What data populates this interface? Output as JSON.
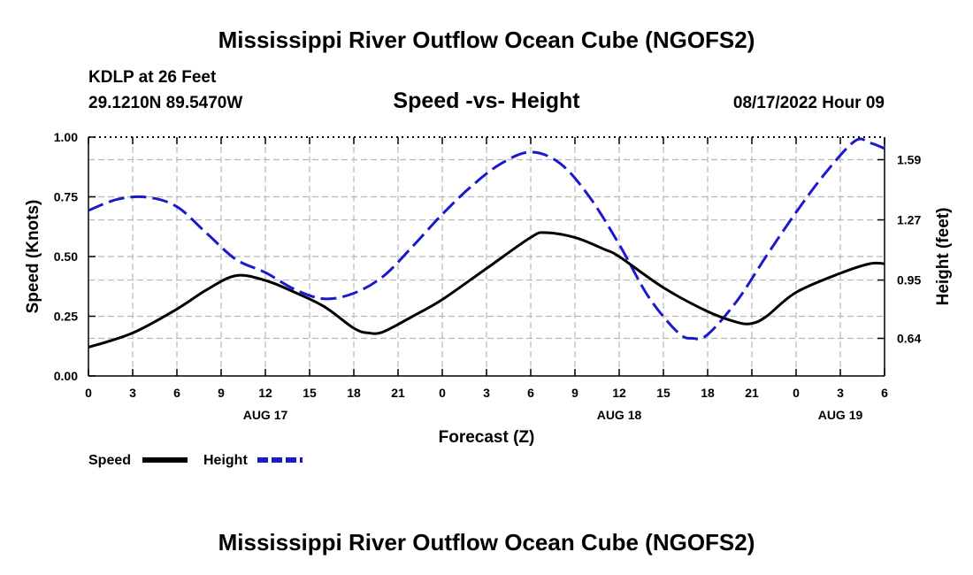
{
  "header": {
    "main_title": "Mississippi River Outflow Ocean Cube (NGOFS2)",
    "station": "KDLP at 26 Feet",
    "coordinates": "29.1210N  89.5470W",
    "subtitle": "Speed -vs- Height",
    "datetime": "08/17/2022 Hour 09",
    "bottom_title": "Mississippi River Outflow Ocean Cube (NGOFS2)"
  },
  "chart_data": {
    "type": "line",
    "title": "Speed -vs- Height",
    "xlabel": "Forecast (Z)",
    "ylabel": "Speed (Knots)",
    "y2label": "Height (feet)",
    "x_hours_range": [
      0,
      54
    ],
    "x_ticks": [
      0,
      3,
      6,
      9,
      12,
      15,
      18,
      21,
      24,
      27,
      30,
      33,
      36,
      39,
      42,
      45,
      48,
      51,
      54
    ],
    "x_tick_labels": [
      "0",
      "3",
      "6",
      "9",
      "12",
      "15",
      "18",
      "21",
      "0",
      "3",
      "6",
      "9",
      "12",
      "15",
      "18",
      "21",
      "0",
      "3",
      "6"
    ],
    "date_labels": [
      {
        "hour": 12,
        "text": "AUG 17"
      },
      {
        "hour": 36,
        "text": "AUG 18"
      },
      {
        "hour": 51,
        "text": "AUG 19"
      }
    ],
    "ylim": [
      0,
      1
    ],
    "y_ticks": [
      0,
      0.25,
      0.5,
      0.75,
      1.0
    ],
    "y_tick_labels": [
      "0.00",
      "0.25",
      "0.50",
      "0.75",
      "1.00"
    ],
    "y2lim": [
      0.44,
      1.71
    ],
    "y2_ticks": [
      0.64,
      0.95,
      1.27,
      1.59
    ],
    "y2_tick_labels": [
      "0.64",
      "0.95",
      "1.27",
      "1.59"
    ],
    "grid": true,
    "legend_position": "bottom-left",
    "series": [
      {
        "name": "Speed",
        "axis": "left",
        "color": "#000000",
        "style": "solid",
        "x": [
          0,
          3,
          6,
          8,
          10,
          12,
          14,
          16,
          18,
          19,
          20,
          22,
          24,
          27,
          30,
          31,
          33,
          35,
          36,
          39,
          42,
          44,
          45,
          46,
          48,
          51,
          53,
          54
        ],
        "values": [
          0.12,
          0.18,
          0.28,
          0.36,
          0.42,
          0.4,
          0.35,
          0.29,
          0.2,
          0.18,
          0.185,
          0.25,
          0.32,
          0.45,
          0.58,
          0.6,
          0.58,
          0.53,
          0.5,
          0.37,
          0.27,
          0.225,
          0.22,
          0.25,
          0.35,
          0.43,
          0.47,
          0.47
        ]
      },
      {
        "name": "Height",
        "axis": "right",
        "color": "#1a1acc",
        "style": "dashed",
        "x": [
          0,
          2,
          4,
          6,
          8,
          10,
          12,
          14,
          16,
          18,
          20,
          22,
          24,
          26,
          28,
          30,
          32,
          34,
          36,
          38,
          40,
          41,
          42,
          44,
          46,
          48,
          50,
          52,
          53,
          54
        ],
        "values": [
          1.32,
          1.38,
          1.39,
          1.34,
          1.2,
          1.06,
          0.99,
          0.9,
          0.85,
          0.88,
          0.97,
          1.13,
          1.3,
          1.45,
          1.57,
          1.63,
          1.57,
          1.39,
          1.14,
          0.86,
          0.67,
          0.64,
          0.66,
          0.84,
          1.08,
          1.31,
          1.52,
          1.69,
          1.68,
          1.65
        ]
      }
    ]
  }
}
